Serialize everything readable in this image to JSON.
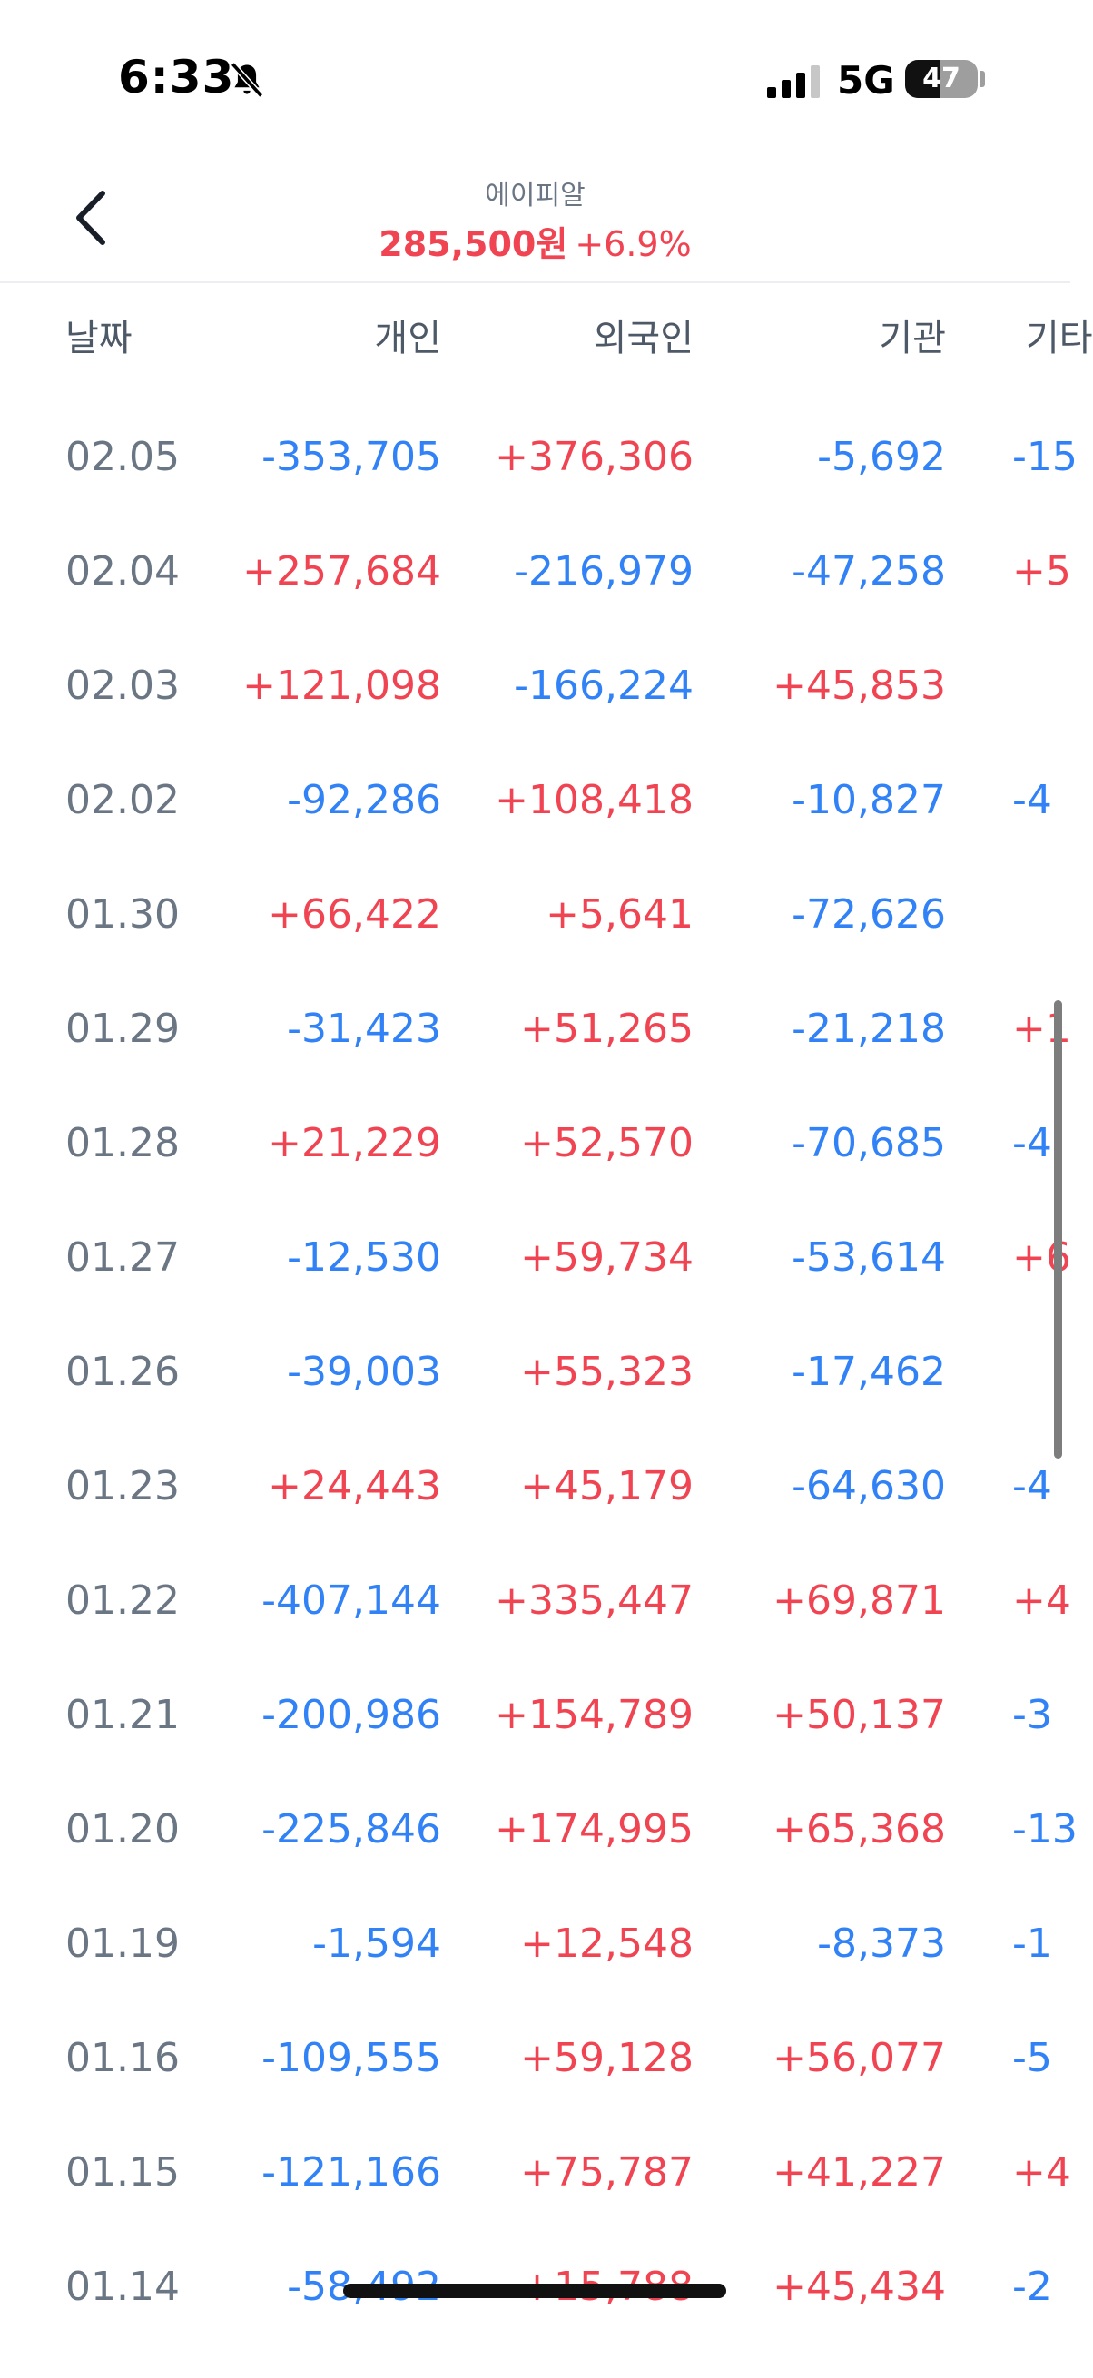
{
  "status": {
    "time": "6:33",
    "network": "5G",
    "battery": "47"
  },
  "header": {
    "stock_name": "에이피알",
    "price": "285,500원",
    "change": "+6.9%"
  },
  "columns": {
    "date": "날짜",
    "individual": "개인",
    "foreign": "외국인",
    "institution": "기관",
    "other": "기타"
  },
  "rows": [
    {
      "date": "02.05",
      "individual": "-353,705",
      "foreign": "+376,306",
      "institution": "-5,692",
      "other": "-15"
    },
    {
      "date": "02.04",
      "individual": "+257,684",
      "foreign": "-216,979",
      "institution": "-47,258",
      "other": "+5"
    },
    {
      "date": "02.03",
      "individual": "+121,098",
      "foreign": "-166,224",
      "institution": "+45,853",
      "other": ""
    },
    {
      "date": "02.02",
      "individual": "-92,286",
      "foreign": "+108,418",
      "institution": "-10,827",
      "other": "-4"
    },
    {
      "date": "01.30",
      "individual": "+66,422",
      "foreign": "+5,641",
      "institution": "-72,626",
      "other": ""
    },
    {
      "date": "01.29",
      "individual": "-31,423",
      "foreign": "+51,265",
      "institution": "-21,218",
      "other": "+1"
    },
    {
      "date": "01.28",
      "individual": "+21,229",
      "foreign": "+52,570",
      "institution": "-70,685",
      "other": "-4"
    },
    {
      "date": "01.27",
      "individual": "-12,530",
      "foreign": "+59,734",
      "institution": "-53,614",
      "other": "+6"
    },
    {
      "date": "01.26",
      "individual": "-39,003",
      "foreign": "+55,323",
      "institution": "-17,462",
      "other": ""
    },
    {
      "date": "01.23",
      "individual": "+24,443",
      "foreign": "+45,179",
      "institution": "-64,630",
      "other": "-4"
    },
    {
      "date": "01.22",
      "individual": "-407,144",
      "foreign": "+335,447",
      "institution": "+69,871",
      "other": "+4"
    },
    {
      "date": "01.21",
      "individual": "-200,986",
      "foreign": "+154,789",
      "institution": "+50,137",
      "other": "-3"
    },
    {
      "date": "01.20",
      "individual": "-225,846",
      "foreign": "+174,995",
      "institution": "+65,368",
      "other": "-13"
    },
    {
      "date": "01.19",
      "individual": "-1,594",
      "foreign": "+12,548",
      "institution": "-8,373",
      "other": "-1"
    },
    {
      "date": "01.16",
      "individual": "-109,555",
      "foreign": "+59,128",
      "institution": "+56,077",
      "other": "-5"
    },
    {
      "date": "01.15",
      "individual": "-121,166",
      "foreign": "+75,787",
      "institution": "+41,227",
      "other": "+4"
    },
    {
      "date": "01.14",
      "individual": "-58,492",
      "foreign": "+15,788",
      "institution": "+45,434",
      "other": "-2"
    }
  ],
  "colors": {
    "positive": "#f04452",
    "negative": "#3182f6",
    "date": "#6b7684",
    "header_text": "#4e5968"
  },
  "icons": {
    "back": "chevron-left-icon",
    "silent": "bell-slash-icon",
    "signal": "cellular-signal-icon",
    "battery": "battery-icon"
  }
}
